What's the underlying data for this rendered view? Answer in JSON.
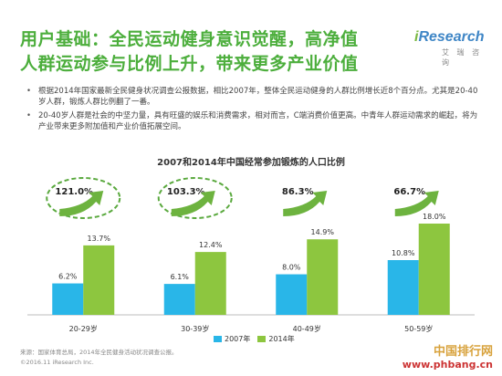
{
  "headline": [
    "用户基础：全民运动健身意识觉醒，高净值",
    "人群运动参与比例上升，带来更多产业价值"
  ],
  "logo": {
    "brand_i": "i",
    "brand_rest": "Research",
    "sub": "艾 瑞 咨 询"
  },
  "bullets": [
    "根据2014年国家最新全民健身状况调查公报数据，相比2007年，整体全民运动健身的人群比例增长近8个百分点。尤其是20-40岁人群，锻炼人群比例翻了一番。",
    "20-40岁人群是社会的中坚力量，具有旺盛的娱乐和消费需求，相对而言，C端消费价值更高。中青年人群运动需求的崛起，将为产业带来更多附加值和产业价值拓展空间。"
  ],
  "colors": {
    "green_title": "#4cae3c",
    "series_2007": "#29b6e8",
    "series_2014": "#8dc63f",
    "arrow": "#6db33f"
  },
  "chart_data": {
    "type": "bar",
    "title": "2007和2014年中国经常参加锻炼的人口比例",
    "categories": [
      "20-29岁",
      "30-39岁",
      "40-49岁",
      "50-59岁"
    ],
    "series": [
      {
        "name": "2007年",
        "values": [
          6.2,
          6.1,
          8.0,
          10.8
        ],
        "labels": [
          "6.2%",
          "6.1%",
          "8.0%",
          "10.8%"
        ]
      },
      {
        "name": "2014年",
        "values": [
          13.7,
          12.4,
          14.9,
          18.0
        ],
        "labels": [
          "13.7%",
          "12.4%",
          "14.9%",
          "18.0%"
        ]
      }
    ],
    "growth": [
      "121.0%",
      "103.3%",
      "86.3%",
      "66.7%"
    ],
    "ylim": [
      0,
      18
    ],
    "legend_position": "bottom"
  },
  "source": "来源：国家体育总局，2014年全民健身活动状况调查公报。",
  "copyright": "©2016.11 iResearch Inc.",
  "watermark": {
    "top": "中国排行网",
    "url": "www.phbang.cn"
  }
}
